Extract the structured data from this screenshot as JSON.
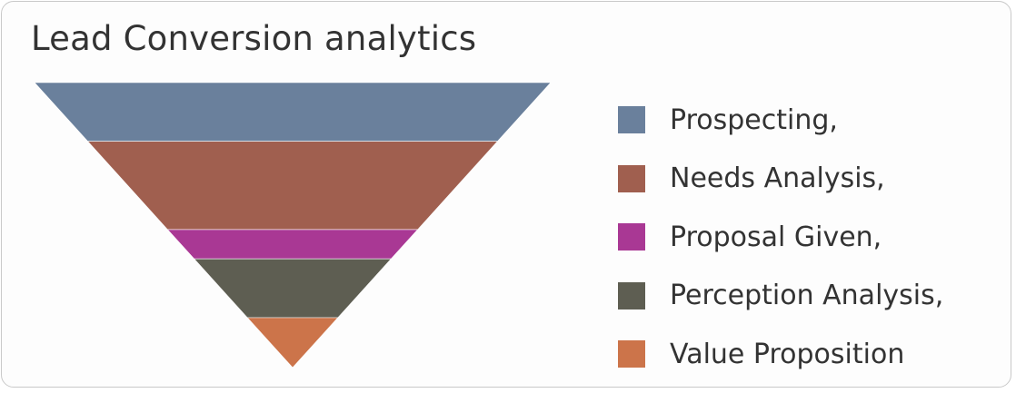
{
  "chart_data": {
    "type": "funnel",
    "title": "Lead Conversion analytics",
    "categories": [
      "Prospecting,",
      "Needs Analysis,",
      "Proposal Given,",
      "Perception Analysis,",
      "Value Proposition"
    ],
    "values": [
      20,
      30,
      10,
      20,
      17
    ],
    "colors": [
      "#6a809c",
      "#a05f4f",
      "#a93894",
      "#5e5e52",
      "#cc744a"
    ],
    "legend_position": "right"
  }
}
